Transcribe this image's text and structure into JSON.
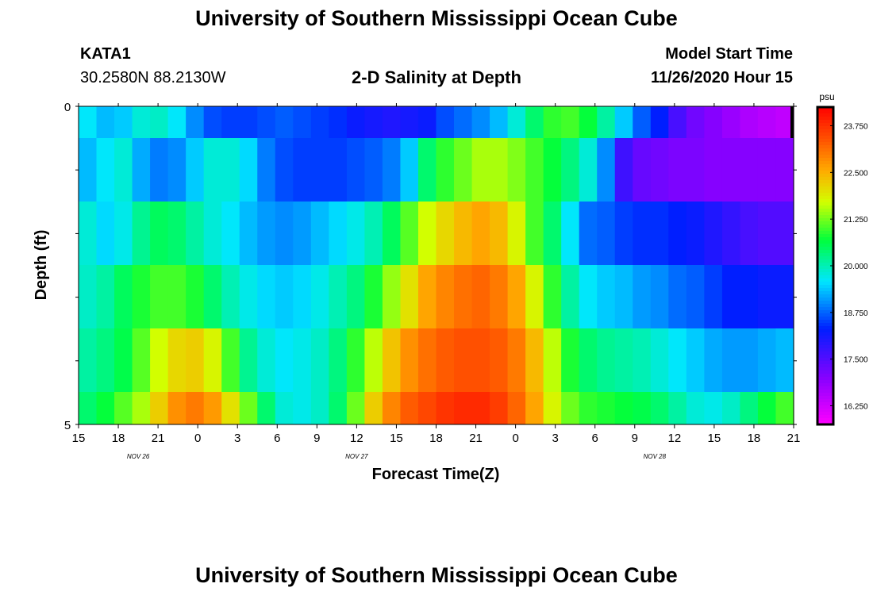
{
  "header": {
    "title": "University of Southern Mississippi Ocean Cube",
    "station": "KATA1",
    "coords": "30.2580N 88.2130W",
    "plot_title": "2-D Salinity at Depth",
    "model_start_label": "Model Start Time",
    "model_start_value": "11/26/2020 Hour 15"
  },
  "footer": {
    "title": "University of Southern Mississippi Ocean Cube"
  },
  "chart_data": {
    "type": "heatmap",
    "title": "2-D Salinity at Depth",
    "xlabel": "Forecast Time(Z)",
    "ylabel": "Depth (ft)",
    "x_tick_labels": [
      "15",
      "18",
      "21",
      "0",
      "3",
      "6",
      "9",
      "12",
      "15",
      "18",
      "21",
      "0",
      "3",
      "6",
      "9",
      "12",
      "15",
      "18",
      "21"
    ],
    "x_date_labels": [
      {
        "label": "NOV 26",
        "at_tick": 1.5
      },
      {
        "label": "NOV 27",
        "at_tick": 7
      },
      {
        "label": "NOV 28",
        "at_tick": 14.5
      }
    ],
    "y_tick_labels": [
      "0",
      "5"
    ],
    "ylim": [
      0,
      5
    ],
    "x_hours": [
      0,
      54
    ],
    "depth_layers": [
      0,
      1,
      2,
      3,
      4,
      5
    ],
    "rows": [
      [
        19.6,
        19.3,
        19.4,
        19.8,
        19.9,
        19.6,
        19.0,
        18.6,
        18.5,
        18.5,
        18.6,
        18.7,
        18.6,
        18.5,
        18.4,
        18.2,
        18.1,
        18.0,
        18.1,
        18.2,
        18.6,
        18.8,
        19.0,
        19.3,
        19.8,
        20.4,
        20.9,
        21.0,
        20.7,
        20.1,
        19.4,
        18.7,
        18.3,
        17.6,
        17.2,
        17.0,
        16.8,
        16.6,
        16.5,
        16.4
      ],
      [
        19.3,
        19.6,
        19.8,
        19.2,
        18.9,
        19.0,
        19.4,
        19.8,
        19.8,
        19.5,
        18.9,
        18.6,
        18.5,
        18.5,
        18.5,
        18.6,
        18.7,
        18.9,
        19.4,
        20.4,
        20.9,
        21.2,
        21.5,
        21.5,
        21.3,
        21.0,
        20.7,
        20.3,
        19.8,
        19.0,
        17.7,
        17.3,
        17.2,
        17.1,
        17.1,
        17.0,
        17.0,
        17.0,
        17.0,
        17.0
      ],
      [
        19.8,
        19.5,
        19.7,
        20.2,
        20.5,
        20.4,
        20.1,
        19.8,
        19.6,
        19.3,
        19.1,
        19.0,
        19.1,
        19.3,
        19.5,
        19.7,
        20.0,
        20.5,
        21.1,
        21.7,
        22.1,
        22.4,
        22.6,
        22.4,
        21.8,
        21.0,
        20.4,
        19.6,
        18.8,
        18.7,
        18.5,
        18.4,
        18.4,
        18.3,
        18.2,
        18.0,
        17.8,
        17.6,
        17.5,
        17.5
      ],
      [
        19.9,
        20.1,
        20.5,
        20.8,
        21.0,
        21.0,
        20.8,
        20.4,
        20.0,
        19.7,
        19.5,
        19.4,
        19.5,
        19.7,
        20.0,
        20.3,
        20.8,
        21.4,
        22.0,
        22.6,
        22.9,
        23.1,
        23.2,
        23.0,
        22.6,
        21.8,
        20.9,
        20.1,
        19.6,
        19.4,
        19.3,
        19.1,
        19.0,
        18.8,
        18.7,
        18.5,
        18.3,
        18.3,
        18.2,
        18.2
      ],
      [
        20.1,
        20.3,
        20.6,
        21.1,
        21.7,
        22.1,
        22.2,
        21.8,
        21.0,
        20.2,
        19.8,
        19.6,
        19.7,
        19.9,
        20.3,
        20.9,
        21.6,
        22.3,
        22.8,
        23.1,
        23.3,
        23.4,
        23.4,
        23.3,
        23.0,
        22.4,
        21.6,
        20.8,
        20.4,
        20.2,
        20.1,
        20.0,
        19.8,
        19.6,
        19.4,
        19.2,
        19.1,
        19.1,
        19.2,
        19.3
      ],
      [
        20.4,
        20.7,
        21.1,
        21.5,
        22.2,
        22.8,
        23.0,
        22.7,
        22.0,
        21.2,
        20.4,
        19.8,
        19.7,
        19.9,
        20.4,
        21.2,
        22.2,
        22.9,
        23.3,
        23.5,
        23.7,
        23.8,
        23.8,
        23.6,
        23.2,
        22.6,
        21.8,
        21.2,
        20.9,
        20.8,
        20.7,
        20.6,
        20.4,
        20.1,
        19.8,
        19.7,
        19.9,
        20.3,
        20.7,
        21.0
      ]
    ],
    "colorbar": {
      "unit": "psu",
      "tick_labels": [
        "23.750",
        "22.500",
        "21.250",
        "20.000",
        "18.750",
        "17.500",
        "16.250"
      ],
      "tick_values": [
        23.75,
        22.5,
        21.25,
        20.0,
        18.75,
        17.5,
        16.25
      ],
      "range": [
        15.75,
        24.25
      ]
    },
    "grid": false,
    "legend": "colorbar-right"
  }
}
